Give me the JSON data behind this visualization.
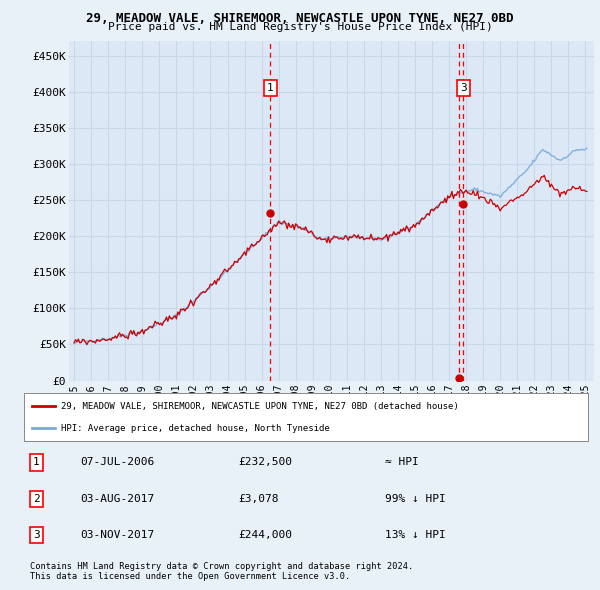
{
  "title": "29, MEADOW VALE, SHIREMOOR, NEWCASTLE UPON TYNE, NE27 0BD",
  "subtitle": "Price paid vs. HM Land Registry's House Price Index (HPI)",
  "ylabel_ticks": [
    "£0",
    "£50K",
    "£100K",
    "£150K",
    "£200K",
    "£250K",
    "£300K",
    "£350K",
    "£400K",
    "£450K"
  ],
  "ytick_values": [
    0,
    50000,
    100000,
    150000,
    200000,
    250000,
    300000,
    350000,
    400000,
    450000
  ],
  "ylim": [
    0,
    470000
  ],
  "xlim_start": 1994.7,
  "xlim_end": 2025.5,
  "bg_color": "#e8f0f8",
  "plot_bg_color": "#dce8f5",
  "grid_color": "#c8d8e8",
  "hpi_color": "#7aaadd",
  "price_color": "#cc0000",
  "transaction1": {
    "date_num": 2006.52,
    "price": 232500,
    "label": "1"
  },
  "transaction2": {
    "date_num": 2017.59,
    "price": 3078,
    "label": "2"
  },
  "transaction3": {
    "date_num": 2017.84,
    "price": 244000,
    "label": "3"
  },
  "legend_label_red": "29, MEADOW VALE, SHIREMOOR, NEWCASTLE UPON TYNE, NE27 0BD (detached house)",
  "legend_label_blue": "HPI: Average price, detached house, North Tyneside",
  "table_data": [
    {
      "num": "1",
      "date": "07-JUL-2006",
      "price": "£232,500",
      "rel": "≈ HPI"
    },
    {
      "num": "2",
      "date": "03-AUG-2017",
      "price": "£3,078",
      "rel": "99% ↓ HPI"
    },
    {
      "num": "3",
      "date": "03-NOV-2017",
      "price": "£244,000",
      "rel": "13% ↓ HPI"
    }
  ],
  "footnote1": "Contains HM Land Registry data © Crown copyright and database right 2024.",
  "footnote2": "This data is licensed under the Open Government Licence v3.0.",
  "hpi_anchors_t": [
    1995.0,
    1997.0,
    1999.0,
    2001.0,
    2003.0,
    2005.0,
    2007.0,
    2008.5,
    2009.5,
    2011.0,
    2013.0,
    2015.0,
    2017.0,
    2018.5,
    2020.0,
    2021.5,
    2022.5,
    2023.5,
    2024.5
  ],
  "hpi_anchors_v": [
    52000,
    58000,
    68000,
    90000,
    130000,
    175000,
    220000,
    210000,
    195000,
    200000,
    195000,
    215000,
    255000,
    265000,
    255000,
    290000,
    320000,
    305000,
    320000
  ]
}
